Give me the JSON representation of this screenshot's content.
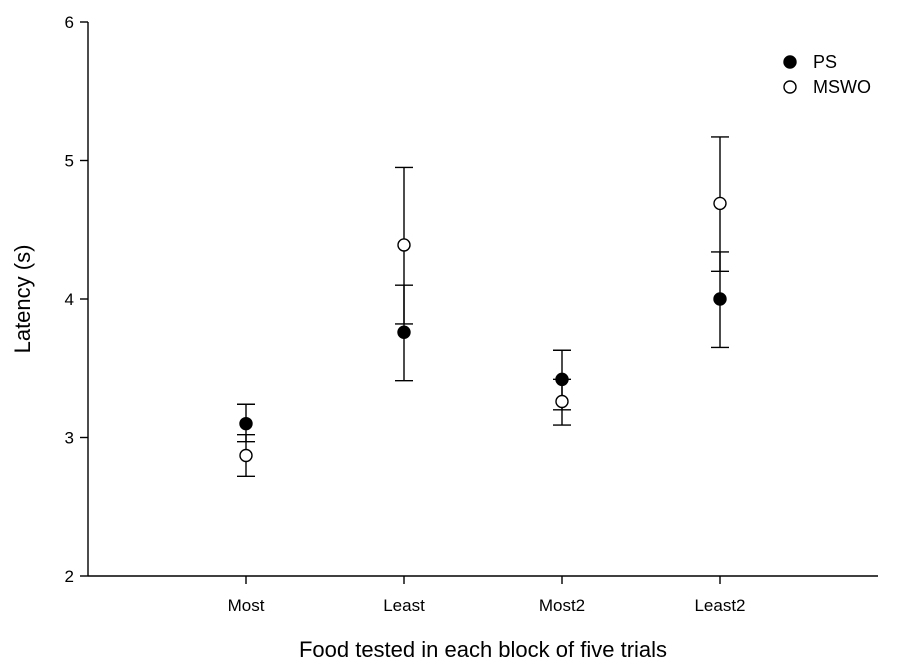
{
  "chart_data": {
    "type": "scatter",
    "title": "",
    "xlabel": "Food tested in each block of five trials",
    "ylabel": "Latency (s)",
    "categories": [
      "Most",
      "Least",
      "Most2",
      "Least2"
    ],
    "ylim": [
      2,
      6
    ],
    "yticks": [
      "2",
      "3",
      "4",
      "5",
      "6"
    ],
    "grid": false,
    "legend_position": "top-right",
    "series": [
      {
        "name": "PS",
        "marker": "filled-circle",
        "color": "#000000",
        "values": [
          3.1,
          3.76,
          3.42,
          4.0
        ],
        "err_low": [
          2.97,
          3.41,
          3.2,
          3.65
        ],
        "err_high": [
          3.24,
          4.1,
          3.63,
          4.34
        ]
      },
      {
        "name": "MSWO",
        "marker": "open-circle",
        "color": "#000000",
        "values": [
          2.87,
          4.39,
          3.26,
          4.69
        ],
        "err_low": [
          2.72,
          3.82,
          3.09,
          4.2
        ],
        "err_high": [
          3.02,
          4.95,
          3.42,
          5.17
        ]
      }
    ]
  }
}
